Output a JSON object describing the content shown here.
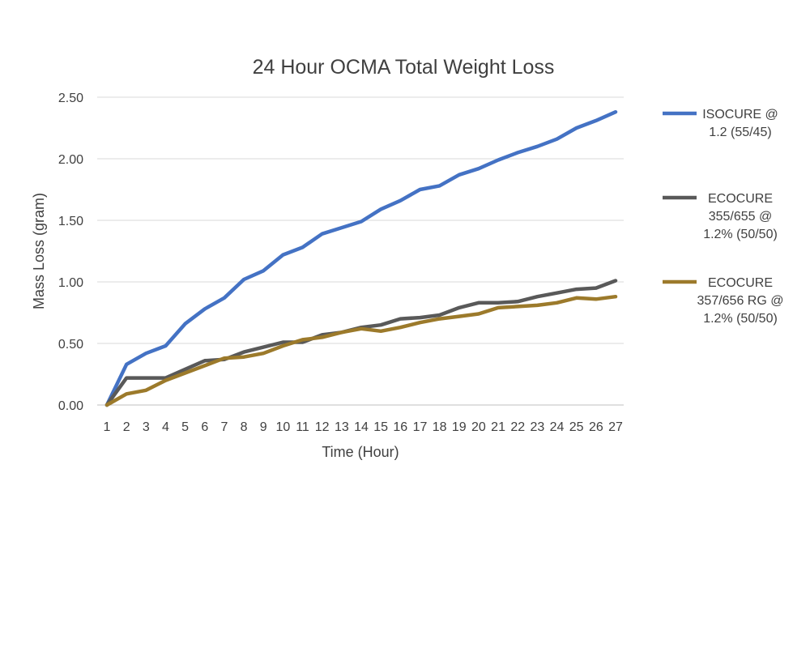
{
  "chart_data": {
    "type": "line",
    "title": "24 Hour OCMA Total Weight Loss",
    "xlabel": "Time (Hour)",
    "ylabel": "Mass Loss (gram)",
    "ylim": [
      0,
      2.5
    ],
    "y_ticks": [
      "0.00",
      "0.50",
      "1.00",
      "1.50",
      "2.00",
      "2.50"
    ],
    "categories": [
      "1",
      "2",
      "3",
      "4",
      "5",
      "6",
      "7",
      "8",
      "9",
      "10",
      "11",
      "12",
      "13",
      "14",
      "15",
      "16",
      "17",
      "18",
      "19",
      "20",
      "21",
      "22",
      "23",
      "24",
      "25",
      "26",
      "27"
    ],
    "legend_position": "right",
    "series": [
      {
        "name": "ISOCURE @ 1.2 (55/45)",
        "legend_lines": [
          "ISOCURE @",
          "1.2 (55/45)"
        ],
        "color": "#4472C4",
        "values": [
          0,
          0.33,
          0.42,
          0.48,
          0.66,
          0.78,
          0.87,
          1.02,
          1.09,
          1.22,
          1.28,
          1.39,
          1.44,
          1.49,
          1.59,
          1.66,
          1.75,
          1.78,
          1.87,
          1.92,
          1.99,
          2.05,
          2.1,
          2.16,
          2.25,
          2.31,
          2.38
        ]
      },
      {
        "name": "ECOCURE 355/655 @ 1.2% (50/50)",
        "legend_lines": [
          "ECOCURE",
          "355/655 @",
          "1.2% (50/50)"
        ],
        "color": "#595959",
        "values": [
          0,
          0.22,
          0.22,
          0.22,
          0.29,
          0.36,
          0.37,
          0.43,
          0.47,
          0.51,
          0.51,
          0.57,
          0.59,
          0.63,
          0.65,
          0.7,
          0.71,
          0.73,
          0.79,
          0.83,
          0.83,
          0.84,
          0.88,
          0.91,
          0.94,
          0.95,
          1.01
        ]
      },
      {
        "name": "ECOCURE 357/656 RG @ 1.2% (50/50)",
        "legend_lines": [
          "ECOCURE",
          "357/656 RG @",
          "1.2% (50/50)"
        ],
        "color": "#9C7A2B",
        "values": [
          0,
          0.09,
          0.12,
          0.2,
          0.26,
          0.32,
          0.38,
          0.39,
          0.42,
          0.48,
          0.53,
          0.55,
          0.59,
          0.62,
          0.6,
          0.63,
          0.67,
          0.7,
          0.72,
          0.74,
          0.79,
          0.8,
          0.81,
          0.83,
          0.87,
          0.86,
          0.88
        ]
      }
    ]
  }
}
